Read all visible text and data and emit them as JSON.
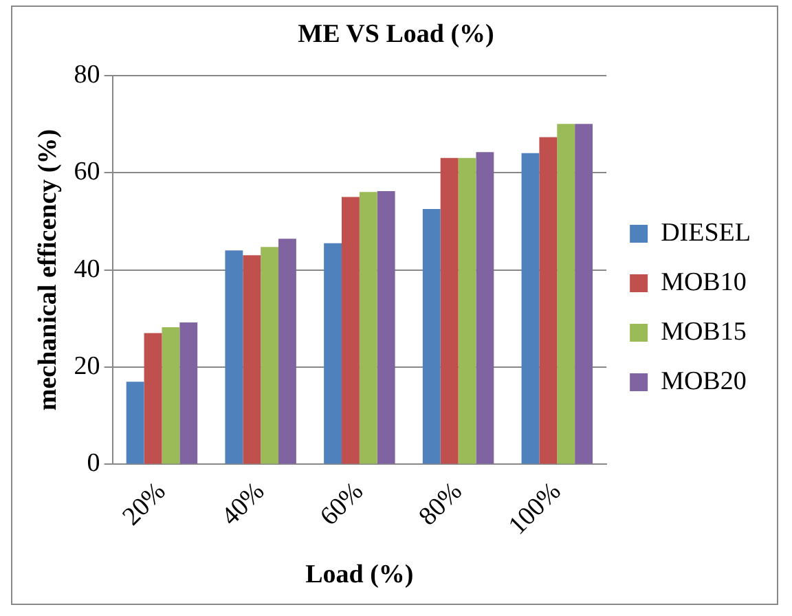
{
  "chart_data": {
    "type": "bar",
    "title": "ME VS Load (%)",
    "xlabel": "Load (%)",
    "ylabel": "mechanical efficency (%)",
    "categories": [
      "20%",
      "40%",
      "60%",
      "80%",
      "100%"
    ],
    "series": [
      {
        "name": "DIESEL",
        "color": "#4f81bd",
        "values": [
          17,
          44,
          45.5,
          52.5,
          64
        ]
      },
      {
        "name": "MOB10",
        "color": "#c0504d",
        "values": [
          27,
          43,
          55,
          63,
          67.3
        ]
      },
      {
        "name": "MOB15",
        "color": "#9bbb59",
        "values": [
          28.2,
          44.7,
          56,
          63,
          70
        ]
      },
      {
        "name": "MOB20",
        "color": "#8064a2",
        "values": [
          29.2,
          46.4,
          56.2,
          64.2,
          70
        ]
      }
    ],
    "ylim": [
      0,
      80
    ],
    "yticks": [
      0,
      20,
      40,
      60,
      80
    ],
    "grid": "y",
    "legend": "right"
  }
}
